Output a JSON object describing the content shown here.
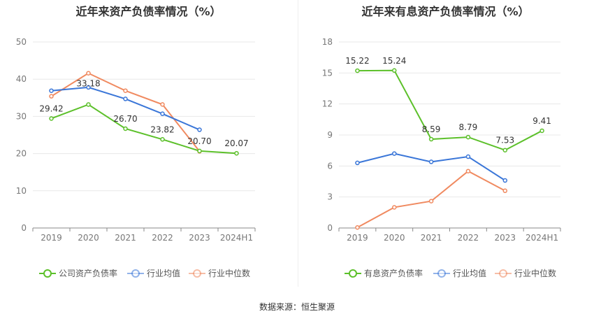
{
  "source_text": "数据来源：恒生聚源",
  "colors": {
    "company": "#5cc02a",
    "avg": "#3a76d8",
    "median": "#f08a60",
    "grid": "#e8e8e8",
    "axis": "#888888"
  },
  "chart_data": [
    {
      "type": "line",
      "title": "近年来资产负债率情况（%）",
      "categories": [
        "2019",
        "2020",
        "2021",
        "2022",
        "2023",
        "2024H1"
      ],
      "ylim": [
        0,
        50
      ],
      "yticks": [
        0,
        10,
        20,
        30,
        40,
        50
      ],
      "grid": true,
      "legend_position": "bottom",
      "series": [
        {
          "name": "公司资产负债率",
          "color": "#5cc02a",
          "values": [
            29.42,
            33.18,
            26.7,
            23.82,
            20.7,
            20.07
          ],
          "labels": [
            "29.42",
            "33.18",
            "26.70",
            "23.82",
            "20.70",
            "20.07"
          ]
        },
        {
          "name": "行业均值",
          "color": "#3a76d8",
          "values": [
            36.9,
            37.8,
            34.7,
            30.7,
            26.4,
            null
          ]
        },
        {
          "name": "行业中位数",
          "color": "#f08a60",
          "values": [
            35.4,
            41.6,
            36.9,
            33.2,
            20.6,
            null
          ]
        }
      ]
    },
    {
      "type": "line",
      "title": "近年来有息资产负债率情况（%）",
      "categories": [
        "2019",
        "2020",
        "2021",
        "2022",
        "2023",
        "2024H1"
      ],
      "ylim": [
        0,
        18
      ],
      "yticks": [
        0,
        3,
        6,
        9,
        12,
        15,
        18
      ],
      "grid": true,
      "legend_position": "bottom",
      "series": [
        {
          "name": "有息资产负债率",
          "color": "#5cc02a",
          "values": [
            15.22,
            15.24,
            8.59,
            8.79,
            7.53,
            9.41
          ],
          "labels": [
            "15.22",
            "15.24",
            "8.59",
            "8.79",
            "7.53",
            "9.41"
          ]
        },
        {
          "name": "行业均值",
          "color": "#3a76d8",
          "values": [
            6.3,
            7.2,
            6.4,
            6.9,
            4.6,
            null
          ]
        },
        {
          "name": "行业中位数",
          "color": "#f08a60",
          "values": [
            0.05,
            2.0,
            2.6,
            5.5,
            3.6,
            null
          ]
        }
      ]
    }
  ]
}
